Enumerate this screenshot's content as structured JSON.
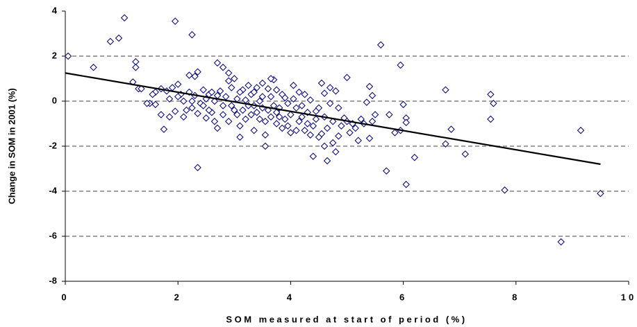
{
  "chart_data": {
    "type": "scatter",
    "xlabel": "SOM measured at start of period (%)",
    "ylabel": "Change in SOM in 2001 (%)",
    "xlim": [
      0,
      10
    ],
    "xticks": [
      0,
      2,
      4,
      6,
      8,
      10
    ],
    "ylim": [
      -8,
      4
    ],
    "yticks": [
      4,
      2,
      0,
      -2,
      -4,
      -6,
      -8
    ],
    "grid": true,
    "color": "#000080",
    "x": [
      0.05,
      0.5,
      0.8,
      0.95,
      1.05,
      1.2,
      1.25,
      1.25,
      1.3,
      1.95,
      2.25,
      2.2,
      2.35,
      2.3,
      1.5,
      1.6,
      1.7,
      1.75,
      2.35,
      2.7,
      2.8,
      2.9,
      3.55,
      4.4,
      4.65,
      4.8,
      5.6,
      5.95,
      5.0,
      4.05,
      4.55,
      6.75,
      7.55,
      7.6,
      7.55,
      6.85,
      6.75,
      7.1,
      6.2,
      5.7,
      6.05,
      7.8,
      9.15,
      9.5,
      8.8,
      6.0,
      6.05,
      6.05,
      5.95,
      5.75,
      5.85,
      5.45,
      5.4,
      5.35,
      5.5,
      5.45,
      5.3,
      5.4,
      5.2,
      5.15,
      5.05,
      4.95,
      4.9,
      4.85,
      4.75,
      4.7,
      4.6,
      4.7,
      4.8,
      4.5,
      4.45,
      4.4,
      4.35,
      4.6,
      4.55,
      4.3,
      4.2,
      4.25,
      4.15,
      4.1,
      4.0,
      3.95,
      3.9,
      3.85,
      3.8,
      3.75,
      3.7,
      3.65,
      3.6,
      3.55,
      3.5,
      3.45,
      3.4,
      3.35,
      3.3,
      3.25,
      3.2,
      3.15,
      3.1,
      3.05,
      3.0,
      2.95,
      2.9,
      2.85,
      2.8,
      2.75,
      2.7,
      2.65,
      2.6,
      2.55,
      2.5,
      2.45,
      2.4,
      2.35,
      2.3,
      2.25,
      2.2,
      2.15,
      2.1,
      2.05,
      2.0,
      1.95,
      1.9,
      1.85,
      1.8,
      1.7,
      1.6,
      1.55,
      1.45,
      1.35,
      2.0,
      2.1,
      2.5,
      2.6,
      2.7,
      2.95,
      3.05,
      3.1,
      3.2,
      3.3,
      3.35,
      3.45,
      3.5,
      3.6,
      3.65,
      3.7,
      3.8,
      3.85,
      3.9,
      4.0,
      4.05,
      4.1,
      4.2,
      4.3,
      4.35,
      4.45,
      4.5,
      4.6,
      4.65,
      4.75,
      4.85,
      5.0,
      5.1,
      5.25,
      3.0,
      3.1,
      2.8,
      2.9,
      3.4,
      3.55,
      3.75,
      3.95,
      4.25,
      2.45,
      2.25,
      2.65,
      1.85,
      2.55,
      3.25,
      3.5,
      3.65,
      4.15,
      3.15,
      3.35,
      3.75
    ],
    "values": [
      2.0,
      1.5,
      2.65,
      2.8,
      3.7,
      0.85,
      1.75,
      1.5,
      0.55,
      3.55,
      2.95,
      1.15,
      1.3,
      1.1,
      -0.1,
      -0.15,
      -0.6,
      -1.25,
      -2.95,
      1.7,
      1.5,
      1.25,
      -2.0,
      -2.45,
      -2.65,
      -2.25,
      2.5,
      1.6,
      1.05,
      0.7,
      0.8,
      0.5,
      0.3,
      -0.1,
      -0.8,
      -1.25,
      -1.9,
      -2.35,
      -2.5,
      -3.1,
      -3.7,
      -3.95,
      -1.3,
      -4.1,
      -6.25,
      -0.15,
      -0.75,
      -0.95,
      -1.3,
      -0.6,
      -1.4,
      0.25,
      0.65,
      -0.05,
      -0.6,
      -0.9,
      -1.0,
      -1.65,
      -1.75,
      -1.2,
      -1.4,
      -0.75,
      -1.1,
      -1.55,
      -1.85,
      -0.1,
      0.35,
      0.6,
      0.45,
      -0.3,
      -0.8,
      -1.1,
      -1.5,
      -2.0,
      -1.45,
      -0.5,
      -0.2,
      0.3,
      -0.9,
      -1.3,
      -0.6,
      -0.1,
      0.15,
      -1.2,
      -0.7,
      0.5,
      0.95,
      0.2,
      -0.4,
      -0.9,
      0.8,
      0.0,
      -0.5,
      -1.3,
      0.3,
      -0.2,
      -0.8,
      0.5,
      -1.6,
      0.1,
      -0.4,
      0.6,
      -0.9,
      0.2,
      -0.2,
      0.45,
      -1.2,
      0.0,
      -0.5,
      0.3,
      -0.75,
      0.5,
      -0.1,
      -0.55,
      0.25,
      -0.3,
      0.4,
      -0.4,
      -0.7,
      0.3,
      0.75,
      -0.45,
      0.6,
      -0.7,
      0.45,
      0.55,
      0.4,
      0.3,
      -0.1,
      0.55,
      0.2,
      0.0,
      0.1,
      0.4,
      0.25,
      -0.2,
      -0.6,
      0.4,
      0.05,
      -0.6,
      0.4,
      -0.8,
      -0.3,
      0.55,
      -0.7,
      -0.2,
      -0.3,
      0.3,
      -0.8,
      -1.4,
      0.1,
      -0.3,
      -0.7,
      -1.0,
      0.05,
      -0.45,
      -1.6,
      -0.7,
      -1.2,
      -0.9,
      -0.3,
      -0.9,
      -1.0,
      -0.8,
      1.0,
      -1.1,
      -0.6,
      0.9,
      0.6,
      -1.5,
      -1.0,
      -1.1,
      -1.3,
      -0.2,
      0.0,
      -0.9,
      0.1,
      -0.4,
      0.7,
      0.2,
      1.0,
      0.4,
      -0.4,
      -0.2,
      -0.5
    ],
    "trendline": {
      "x": [
        0,
        9.5
      ],
      "y": [
        1.25,
        -2.8
      ],
      "color": "#000000"
    }
  }
}
